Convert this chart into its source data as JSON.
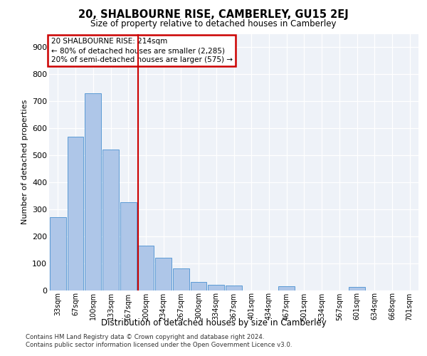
{
  "title": "20, SHALBOURNE RISE, CAMBERLEY, GU15 2EJ",
  "subtitle": "Size of property relative to detached houses in Camberley",
  "xlabel": "Distribution of detached houses by size in Camberley",
  "ylabel": "Number of detached properties",
  "categories": [
    "33sqm",
    "67sqm",
    "100sqm",
    "133sqm",
    "167sqm",
    "200sqm",
    "234sqm",
    "267sqm",
    "300sqm",
    "334sqm",
    "367sqm",
    "401sqm",
    "434sqm",
    "467sqm",
    "501sqm",
    "534sqm",
    "567sqm",
    "601sqm",
    "634sqm",
    "668sqm",
    "701sqm"
  ],
  "bar_heights": [
    270,
    570,
    730,
    520,
    325,
    165,
    120,
    80,
    30,
    20,
    18,
    0,
    0,
    15,
    0,
    0,
    0,
    12,
    0,
    0,
    0
  ],
  "bar_color": "#aec6e8",
  "bar_edge_color": "#5b9bd5",
  "vline_color": "#cc0000",
  "vline_x": 4.55,
  "annotation_line1": "20 SHALBOURNE RISE: 214sqm",
  "annotation_line2": "← 80% of detached houses are smaller (2,285)",
  "annotation_line3": "20% of semi-detached houses are larger (575) →",
  "annotation_box_color": "#cc0000",
  "ylim": [
    0,
    950
  ],
  "yticks": [
    0,
    100,
    200,
    300,
    400,
    500,
    600,
    700,
    800,
    900
  ],
  "background_color": "#eef2f8",
  "footer_line1": "Contains HM Land Registry data © Crown copyright and database right 2024.",
  "footer_line2": "Contains public sector information licensed under the Open Government Licence v3.0."
}
